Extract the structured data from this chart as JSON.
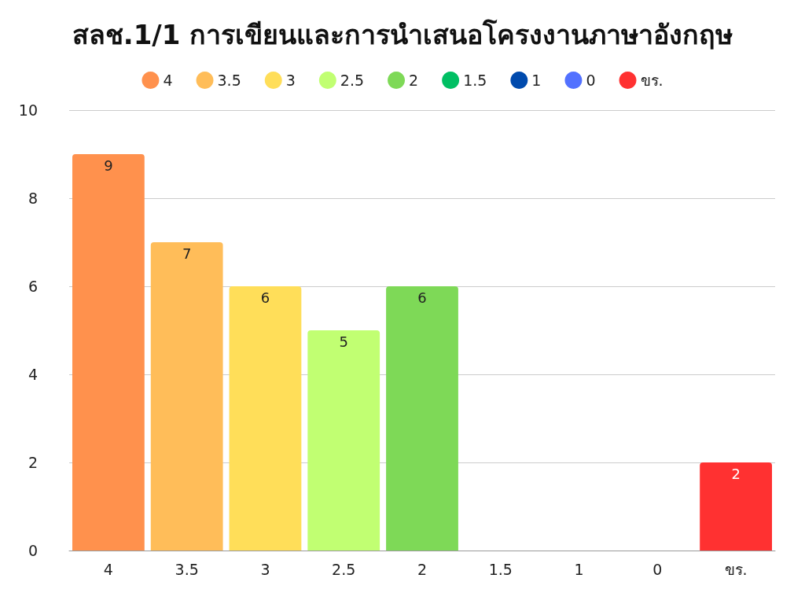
{
  "chart_data": {
    "type": "bar",
    "title": "สลช.1/1 การเขียนและการนำเสนอโครงงานภาษาอังกฤษ",
    "categories": [
      "4",
      "3.5",
      "3",
      "2.5",
      "2",
      "1.5",
      "1",
      "0",
      "ขร."
    ],
    "series": [
      {
        "name": "4",
        "color": "#ff914d",
        "values": [
          9,
          null,
          null,
          null,
          null,
          null,
          null,
          null,
          null
        ]
      },
      {
        "name": "3.5",
        "color": "#ffbd59",
        "values": [
          null,
          7,
          null,
          null,
          null,
          null,
          null,
          null,
          null
        ]
      },
      {
        "name": "3",
        "color": "#ffde59",
        "values": [
          null,
          null,
          6,
          null,
          null,
          null,
          null,
          null,
          null
        ]
      },
      {
        "name": "2.5",
        "color": "#c1ff72",
        "values": [
          null,
          null,
          null,
          5,
          null,
          null,
          null,
          null,
          null
        ]
      },
      {
        "name": "2",
        "color": "#7ed957",
        "values": [
          null,
          null,
          null,
          null,
          6,
          null,
          null,
          null,
          null
        ]
      },
      {
        "name": "1.5",
        "color": "#00bf63",
        "values": [
          null,
          null,
          null,
          null,
          null,
          0,
          null,
          null,
          null
        ],
        "value_labels": [
          null,
          null,
          null,
          null,
          null,
          null,
          null,
          null,
          null
        ]
      },
      {
        "name": "1",
        "color": "#004aad",
        "values": [
          null,
          null,
          null,
          null,
          null,
          null,
          0,
          null,
          null
        ],
        "value_labels": [
          null,
          null,
          null,
          null,
          null,
          null,
          null,
          null,
          null
        ]
      },
      {
        "name": "0",
        "color": "#5271ff",
        "values": [
          null,
          null,
          null,
          null,
          null,
          null,
          null,
          0,
          null
        ],
        "value_labels": [
          null,
          null,
          null,
          null,
          null,
          null,
          null,
          null,
          null
        ]
      },
      {
        "name": "ขร.",
        "color": "#ff3131",
        "values": [
          null,
          null,
          null,
          null,
          null,
          null,
          null,
          null,
          2
        ]
      }
    ],
    "ylim": [
      0,
      10
    ],
    "yticks": [
      0,
      2,
      4,
      6,
      8,
      10
    ],
    "grid": "y",
    "legend": "top",
    "data_labels": true
  }
}
